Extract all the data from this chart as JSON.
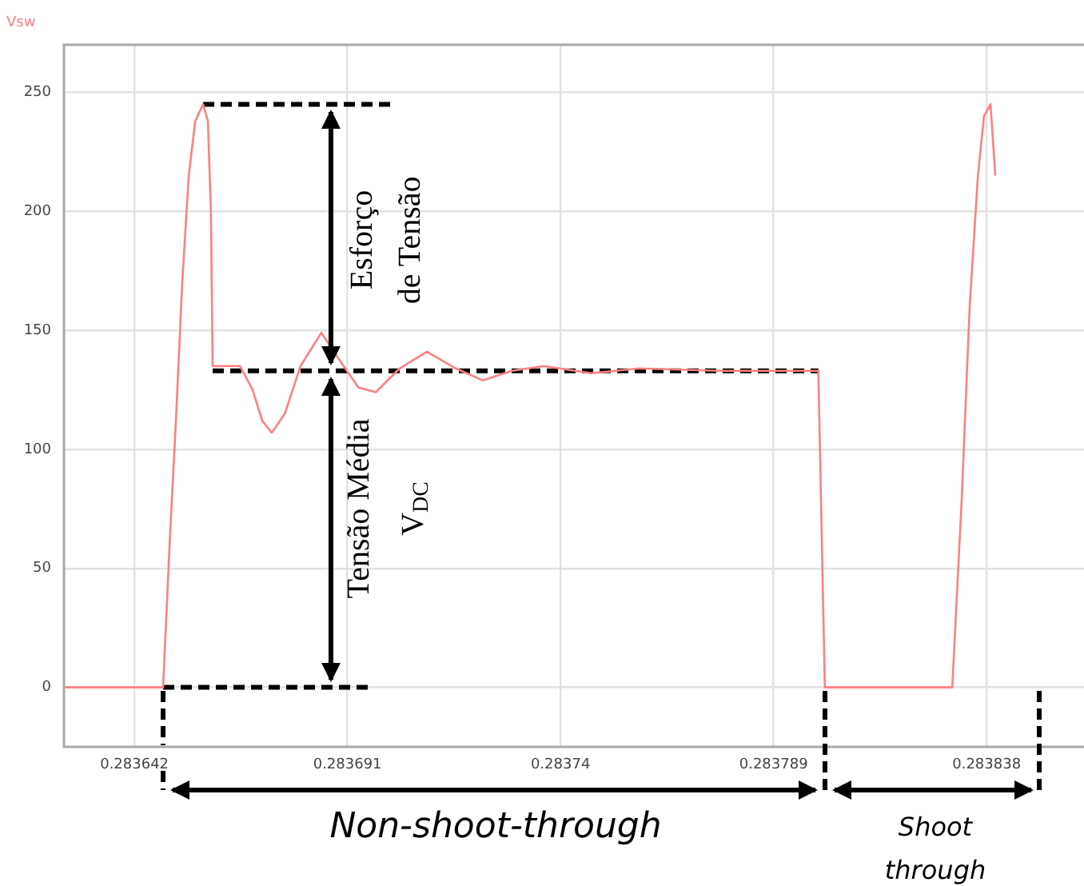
{
  "chart_data": {
    "type": "line",
    "legend": "top left",
    "grid": true,
    "marker": "none",
    "line_style": "solid",
    "xlim": [
      0.2836258,
      0.2838604
    ],
    "xticks": [
      0.283642,
      0.283691,
      0.28374,
      0.283789,
      0.283838
    ],
    "ylim": [
      -25,
      270
    ],
    "yticks": [
      0,
      50,
      100,
      150,
      200,
      250
    ],
    "annotations": [
      "Esforço de Tensão",
      "Tensão Média V$_{DC}$",
      "Non-shoot-through",
      "Shoot through"
    ],
    "series": [
      {
        "name": "Vsw",
        "color": "#ff8080",
        "x": [
          0.2836258,
          0.2836486,
          0.2836501,
          0.2836516,
          0.283653,
          0.2836545,
          0.283656,
          0.2836578,
          0.2836589,
          0.2836596,
          0.28366,
          0.2836663,
          0.2836692,
          0.2836714,
          0.2836736,
          0.2836766,
          0.2836802,
          0.283685,
          0.283689,
          0.2836935,
          0.2836975,
          0.283703,
          0.2837093,
          0.2837159,
          0.2837221,
          0.2837288,
          0.2837361,
          0.2837471,
          0.2837582,
          0.2837765,
          0.2837993,
          0.2838008,
          0.2838301,
          0.2838323,
          0.2838341,
          0.283836,
          0.2838374,
          0.2838389,
          0.28384
        ],
        "values": [
          0,
          0,
          60,
          114,
          170,
          215,
          238,
          245,
          238,
          200,
          135,
          135,
          125,
          112,
          107,
          115,
          135,
          149,
          138,
          126,
          124,
          134,
          141,
          134,
          129,
          133,
          135,
          132,
          134,
          133,
          133,
          0,
          0,
          80,
          160,
          215,
          240,
          245,
          215
        ]
      },
      {
        "color": "#000000",
        "line_style": "dashed",
        "x": [
          0.2836578,
          0.2837012
        ],
        "values": [
          245,
          245
        ]
      },
      {
        "color": "#000000",
        "line_style": "dashed",
        "x": [
          0.28366,
          0.2837993
        ],
        "values": [
          133,
          133
        ]
      },
      {
        "color": "#000000",
        "line_style": "dashed",
        "x": [
          0.2836486,
          0.2836957
        ],
        "values": [
          0,
          0
        ]
      }
    ]
  }
}
